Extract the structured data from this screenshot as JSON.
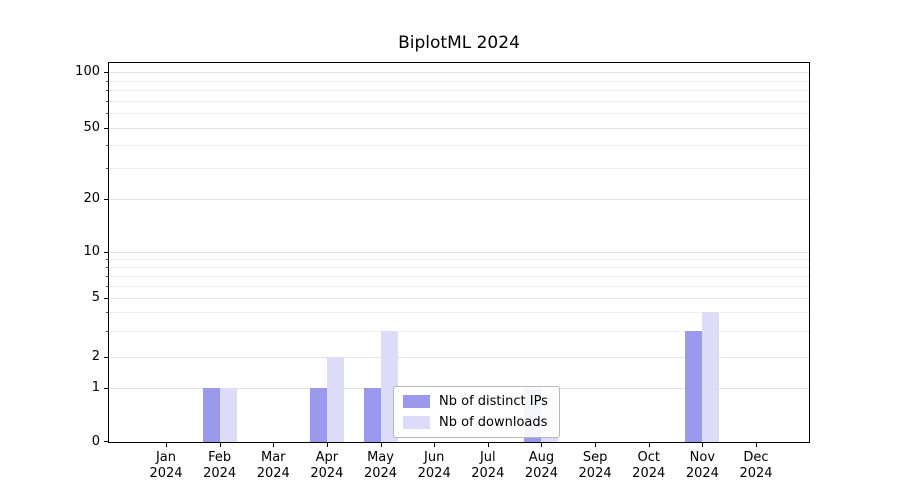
{
  "chart_data": {
    "type": "bar",
    "title": "BiplotML 2024",
    "categories": [
      "Jan",
      "Feb",
      "Mar",
      "Apr",
      "May",
      "Jun",
      "Jul",
      "Aug",
      "Sep",
      "Oct",
      "Nov",
      "Dec"
    ],
    "year": "2024",
    "series": [
      {
        "name": "Nb of distinct IPs",
        "color": "#9a99ec",
        "values": [
          0,
          1,
          0,
          1,
          1,
          0,
          0,
          1,
          0,
          0,
          3,
          0
        ]
      },
      {
        "name": "Nb of downloads",
        "color": "#dcdbf8",
        "values": [
          0,
          1,
          0,
          2,
          3,
          0,
          0,
          1,
          0,
          0,
          4,
          0
        ]
      }
    ],
    "yticks": [
      0,
      1,
      2,
      5,
      10,
      20,
      50,
      100
    ],
    "yaxis_scale": "symlog",
    "ylim": [
      0,
      110
    ],
    "grid": "horizontal, major and minor, light gray",
    "legend_position": "inside lower-center"
  }
}
